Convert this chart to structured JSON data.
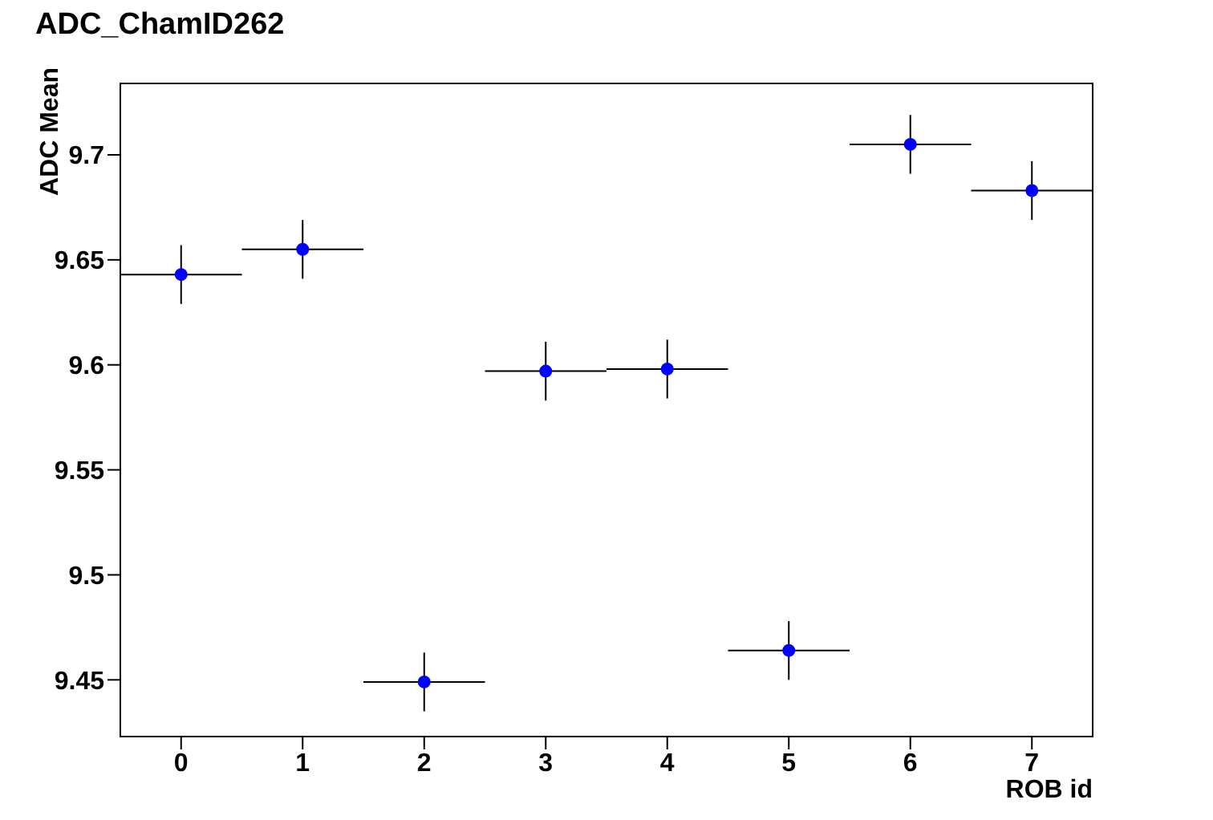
{
  "chart_data": {
    "type": "scatter",
    "title": "ADC_ChamID262",
    "xlabel": "ROB id",
    "ylabel": "ADC Mean",
    "x": [
      0,
      1,
      2,
      3,
      4,
      5,
      6,
      7
    ],
    "series": [
      {
        "color": "#0000ff",
        "values": [
          9.643,
          9.655,
          9.449,
          9.597,
          9.598,
          9.464,
          9.705,
          9.683
        ],
        "errors": [
          0.014,
          0.014,
          0.014,
          0.014,
          0.014,
          0.014,
          0.014,
          0.014
        ],
        "xerrors": [
          0.5,
          0.5,
          0.5,
          0.5,
          0.5,
          0.5,
          0.5,
          0.5
        ]
      }
    ],
    "xlim": [
      -0.5,
      7.5
    ],
    "xticks": [
      0,
      1,
      2,
      3,
      4,
      5,
      6,
      7
    ],
    "ylim": [
      9.423,
      9.734
    ],
    "yticks": [
      9.45,
      9.5,
      9.55,
      9.6,
      9.65,
      9.7
    ],
    "marker": "circle",
    "grid": false,
    "legend": false
  }
}
